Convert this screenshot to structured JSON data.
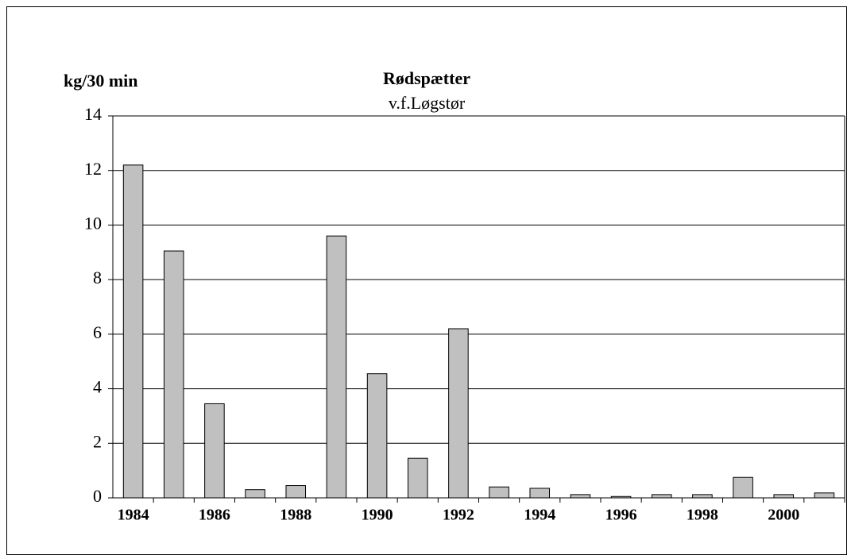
{
  "chart_data": {
    "type": "bar",
    "title": "Rødspætter",
    "subtitle": "v.f.Løgstør",
    "y_label": "kg/30 min",
    "categories": [
      "1984",
      null,
      "1986",
      null,
      "1988",
      null,
      "1990",
      null,
      "1992",
      null,
      "1994",
      null,
      "1996",
      null,
      "1998",
      null,
      "2000",
      null
    ],
    "values": [
      12.2,
      9.05,
      3.45,
      0.3,
      0.45,
      9.6,
      4.55,
      1.45,
      6.2,
      0.4,
      0.35,
      0.12,
      0.05,
      0.12,
      0.12,
      0.75,
      0.12,
      0.18
    ],
    "color": "#c0c0c0",
    "ylim": [
      0,
      14
    ],
    "yticks": [
      0,
      2,
      4,
      6,
      8,
      10,
      12,
      14
    ],
    "grid": true
  }
}
